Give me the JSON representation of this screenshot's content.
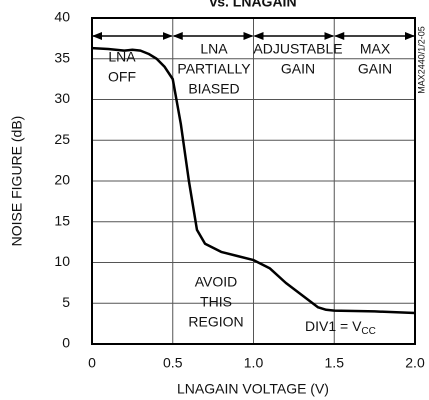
{
  "chart_data": {
    "type": "line",
    "title": "vs. LNAGAIN",
    "x_label": "LNAGAIN VOLTAGE (V)",
    "y_label": "NOISE FIGURE (dB)",
    "side_label": "MAX2440/1/2-05",
    "x": [
      0,
      0.1,
      0.2,
      0.25,
      0.3,
      0.35,
      0.4,
      0.45,
      0.5,
      0.55,
      0.6,
      0.65,
      0.7,
      0.8,
      0.9,
      1.0,
      1.1,
      1.2,
      1.3,
      1.4,
      1.45,
      1.5,
      1.75,
      2.0
    ],
    "series": [
      {
        "color": "#000000",
        "values": [
          36.3,
          36.2,
          36.0,
          36.1,
          36.0,
          35.6,
          35.0,
          34.0,
          32.5,
          27,
          20,
          14,
          12.3,
          11.3,
          10.8,
          10.3,
          9.3,
          7.5,
          6,
          4.5,
          4.2,
          4.1,
          4.0,
          3.8
        ]
      }
    ],
    "xlim": [
      0,
      2.0
    ],
    "xticks": [
      0,
      0.5,
      {
        "value": 1.0,
        "label": "1.0"
      },
      1.5,
      {
        "value": 2.0,
        "label": "2.0"
      }
    ],
    "ylim": [
      0,
      40
    ],
    "yticks": [
      0,
      5,
      10,
      15,
      20,
      25,
      30,
      35,
      40
    ],
    "grid": true,
    "regions": [
      [
        "LNA",
        "OFF"
      ],
      [
        "LNA",
        "PARTIALLY",
        "BIASED"
      ],
      [
        "ADJUSTABLE",
        "GAIN"
      ],
      [
        "MAX",
        "GAIN"
      ]
    ],
    "avoid": [
      "AVOID",
      "THIS",
      "REGION"
    ],
    "condition": {
      "text": "DIV1 = V",
      "subscript": "CC"
    }
  }
}
